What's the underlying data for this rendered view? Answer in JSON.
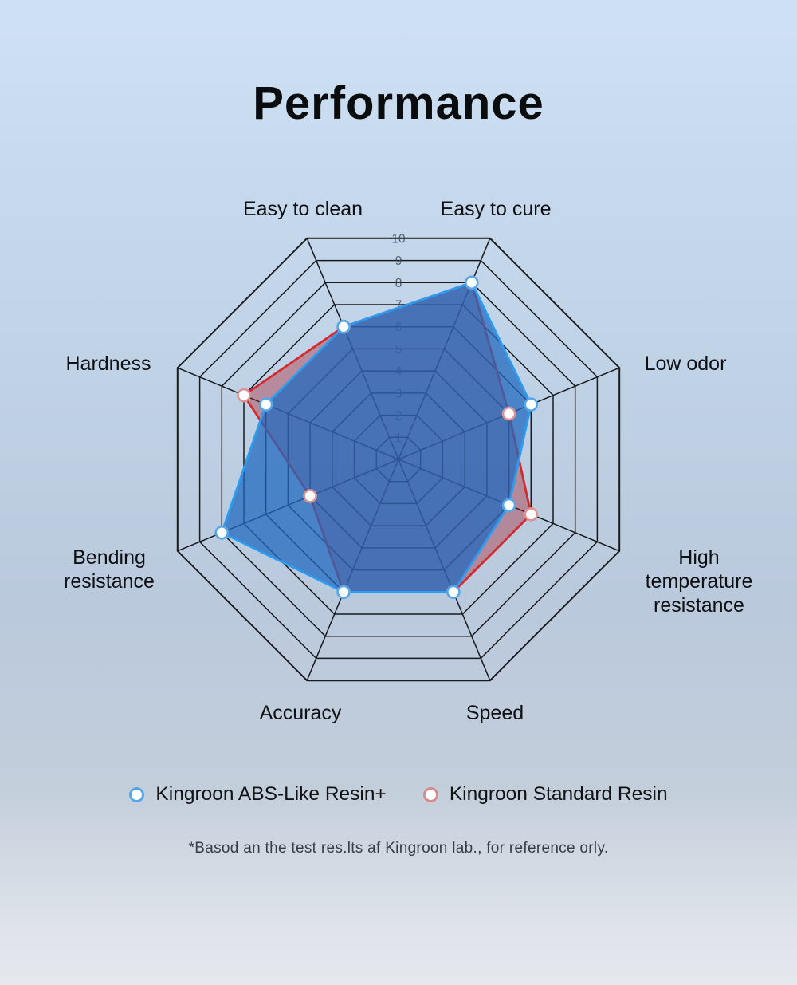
{
  "title": "Performance",
  "chart_data": {
    "type": "radar",
    "axes": [
      "Easy to clean",
      "Easy to cure",
      "Low odor",
      "High temperature resistance",
      "Speed",
      "Accuracy",
      "Bending resistance",
      "Hardness"
    ],
    "axis_label_lines": [
      [
        "Easy to clean"
      ],
      [
        "Easy to cure"
      ],
      [
        "Low odor"
      ],
      [
        "High",
        "temperature",
        "resistance"
      ],
      [
        "Speed"
      ],
      [
        "Accuracy"
      ],
      [
        "Bending",
        "resistance"
      ],
      [
        "Hardness"
      ]
    ],
    "scale": {
      "min": 0,
      "max": 10,
      "step": 1,
      "tick_labels": [
        "1",
        "2",
        "3",
        "4",
        "5",
        "6",
        "7",
        "8",
        "9",
        "10"
      ]
    },
    "series": [
      {
        "name": "Kingroon ABS-Like Resin+",
        "values": [
          6,
          8,
          6,
          5,
          6,
          6,
          8,
          6
        ],
        "stroke": "#2b9cf2",
        "fill": "rgba(35,105,190,0.75)",
        "marker_ring": "#56a7ea"
      },
      {
        "name": "Kingroon Standard Resin",
        "values": [
          6,
          8,
          5,
          6,
          6,
          6,
          4,
          7
        ],
        "stroke": "#d42a2e",
        "fill": "rgba(165,25,40,0.38)",
        "marker_ring": "#dd9393"
      }
    ],
    "grid_color": "#171a1e",
    "legend_position": "bottom",
    "grid": "on"
  },
  "legend": {
    "items": [
      {
        "label": "Kingroon ABS-Like Resin+",
        "color": "#56a7ea"
      },
      {
        "label": "Kingroon Standard Resin",
        "color": "#d98b8b"
      }
    ]
  },
  "footnote": "*Basod an the test res.lts af Kingroon lab., for reference orly."
}
